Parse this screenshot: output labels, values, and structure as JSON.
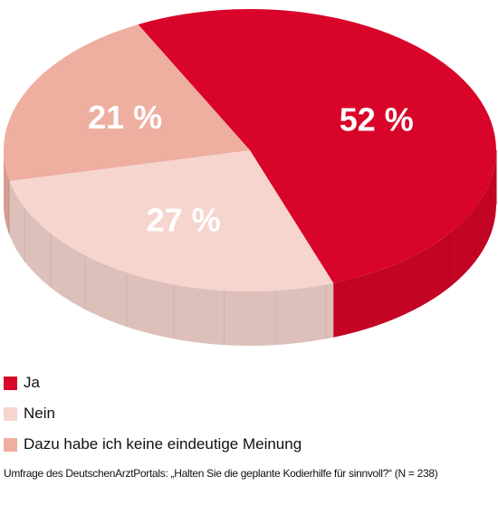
{
  "chart_data": {
    "type": "pie",
    "style": "3d",
    "categories": [
      "Ja",
      "Nein",
      "Dazu habe ich keine eindeutige Meinung"
    ],
    "values": [
      52,
      27,
      21
    ],
    "data_labels": [
      "52 %",
      "27 %",
      "21 %"
    ],
    "colors": [
      "#d90429",
      "#f6d5cf",
      "#eeaea0"
    ],
    "legend_position": "bottom-left",
    "source": "Umfrage des DeutschenArztPortals: „Halten Sie die geplante Kodierhilfe für sinnvoll?“ (N = 238)"
  }
}
